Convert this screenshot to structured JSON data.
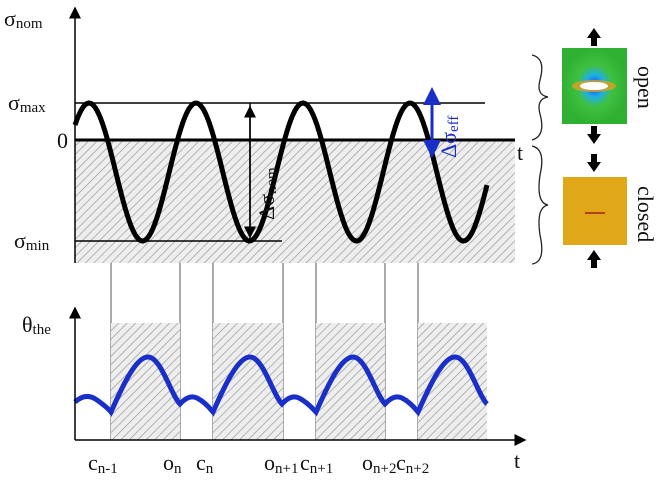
{
  "axes": {
    "top_y": {
      "symbol": "σ",
      "sub": "nom"
    },
    "top_t": "t",
    "bottom_y": {
      "symbol": "θ",
      "sub": "the"
    },
    "bottom_t": "t"
  },
  "levels": {
    "max": {
      "symbol": "σ",
      "sub": "max"
    },
    "zero": "0",
    "min": {
      "symbol": "σ",
      "sub": "min"
    }
  },
  "ranges": {
    "nom": {
      "symbol": "Δσ",
      "sub": "nom"
    },
    "eff": {
      "symbol": "Δσ",
      "sub": "eff"
    }
  },
  "states": {
    "open": "open",
    "closed": "closed"
  },
  "events": [
    {
      "main": "c",
      "sub": "n-1"
    },
    {
      "main": "o",
      "sub": "n"
    },
    {
      "main": "c",
      "sub": "n"
    },
    {
      "main": "o",
      "sub": "n+1"
    },
    {
      "main": "c",
      "sub": "n+1"
    },
    {
      "main": "o",
      "sub": "n+2"
    },
    {
      "main": "c",
      "sub": "n+2"
    }
  ]
}
